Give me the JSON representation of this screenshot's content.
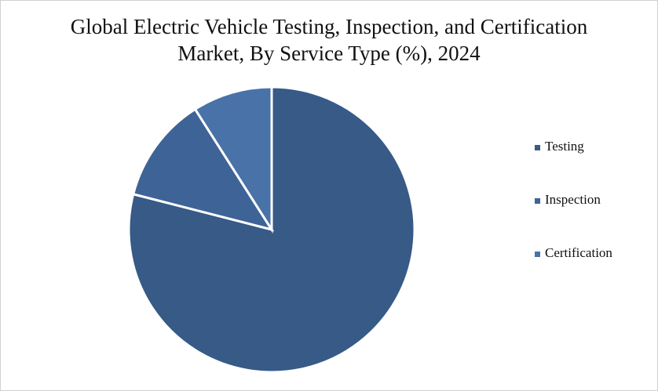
{
  "chart_data": {
    "type": "pie",
    "title": "Global Electric Vehicle Testing, Inspection, and Certification Market, By Service Type (%), 2024",
    "categories": [
      "Testing",
      "Inspection",
      "Certification"
    ],
    "values": [
      79,
      12,
      9
    ],
    "colors": [
      "#375a87",
      "#3e6397",
      "#4872a8"
    ]
  }
}
